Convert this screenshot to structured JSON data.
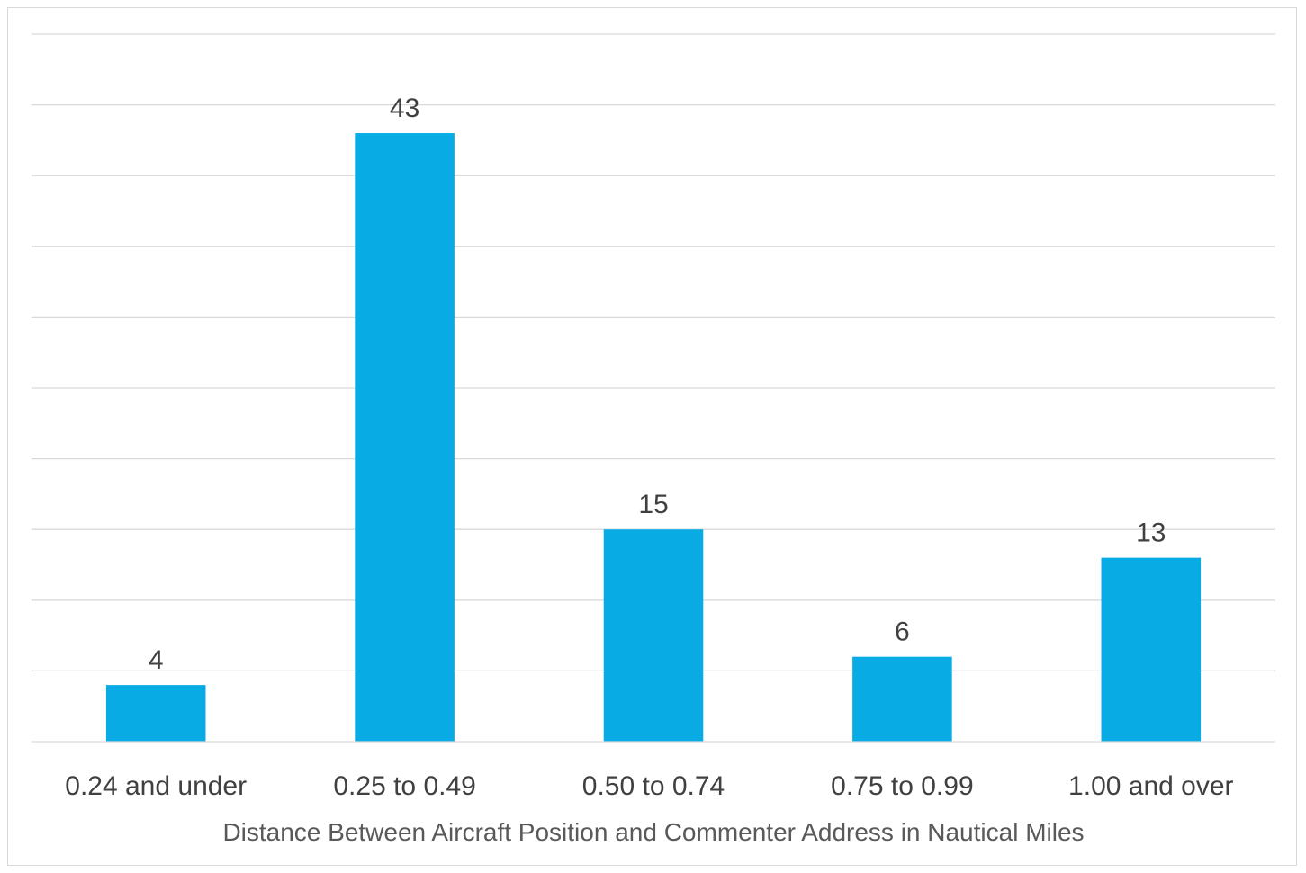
{
  "chart_data": {
    "type": "bar",
    "categories": [
      "0.24 and under",
      "0.25 to 0.49",
      "0.50 to 0.74",
      "0.75 to 0.99",
      "1.00 and over"
    ],
    "values": [
      4,
      43,
      15,
      6,
      13
    ],
    "xlabel": "Distance Between Aircraft Position and Commenter Address in Nautical Miles",
    "ylabel": "",
    "ylim": [
      0,
      50
    ],
    "ytick_step": 5,
    "y_tick_labels_visible": false,
    "grid": true,
    "data_labels": true,
    "legend": "none",
    "bar_color": "#08abe3"
  }
}
